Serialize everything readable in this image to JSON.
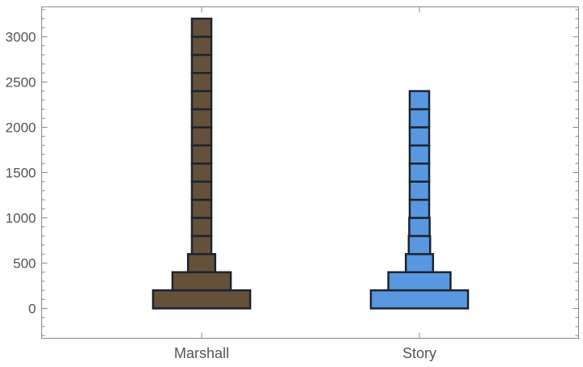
{
  "chart_data": {
    "type": "histogram",
    "categories": [
      "Marshall",
      "Story"
    ],
    "bin_width": 200,
    "ylim": [
      -330,
      3330
    ],
    "yticks": [
      0,
      500,
      1000,
      1500,
      2000,
      2500,
      3000
    ],
    "grid": false,
    "legend": "none",
    "series": [
      {
        "color": "#65503a",
        "bins": [
          {
            "y0": 0,
            "y1": 200,
            "count": 5
          },
          {
            "y0": 200,
            "y1": 400,
            "count": 3
          },
          {
            "y0": 400,
            "y1": 600,
            "count": 1.4
          },
          {
            "y0": 600,
            "y1": 800,
            "count": 1
          },
          {
            "y0": 800,
            "y1": 1000,
            "count": 1
          },
          {
            "y0": 1000,
            "y1": 1200,
            "count": 1
          },
          {
            "y0": 1200,
            "y1": 1400,
            "count": 1
          },
          {
            "y0": 1400,
            "y1": 1600,
            "count": 1
          },
          {
            "y0": 1600,
            "y1": 1800,
            "count": 1
          },
          {
            "y0": 1800,
            "y1": 2000,
            "count": 1
          },
          {
            "y0": 2000,
            "y1": 2200,
            "count": 1
          },
          {
            "y0": 2200,
            "y1": 2400,
            "count": 1
          },
          {
            "y0": 2400,
            "y1": 2600,
            "count": 1
          },
          {
            "y0": 2600,
            "y1": 2800,
            "count": 1
          },
          {
            "y0": 2800,
            "y1": 3000,
            "count": 1
          },
          {
            "y0": 3000,
            "y1": 3200,
            "count": 1
          }
        ]
      },
      {
        "color": "#5998e0",
        "bins": [
          {
            "y0": 0,
            "y1": 200,
            "count": 5
          },
          {
            "y0": 200,
            "y1": 400,
            "count": 3.2
          },
          {
            "y0": 400,
            "y1": 600,
            "count": 1.4
          },
          {
            "y0": 600,
            "y1": 800,
            "count": 1.1
          },
          {
            "y0": 800,
            "y1": 1000,
            "count": 1.05
          },
          {
            "y0": 1000,
            "y1": 1200,
            "count": 1
          },
          {
            "y0": 1200,
            "y1": 1400,
            "count": 1
          },
          {
            "y0": 1400,
            "y1": 1600,
            "count": 1
          },
          {
            "y0": 1600,
            "y1": 1800,
            "count": 1
          },
          {
            "y0": 1800,
            "y1": 2000,
            "count": 1
          },
          {
            "y0": 2000,
            "y1": 2200,
            "count": 1
          },
          {
            "y0": 2200,
            "y1": 2400,
            "count": 1
          }
        ]
      }
    ]
  }
}
